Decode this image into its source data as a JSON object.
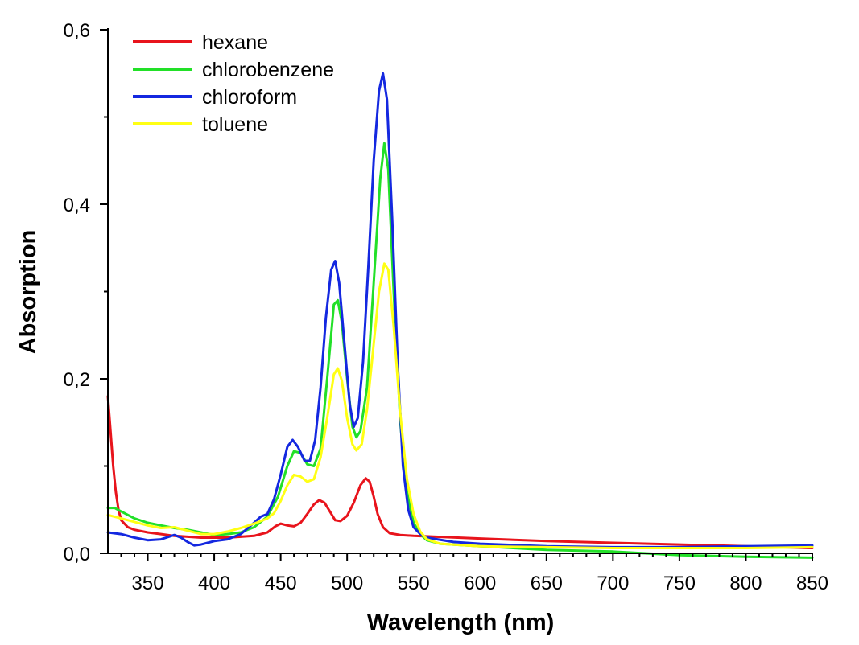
{
  "chart_data": {
    "type": "line",
    "title": "",
    "xlabel": "Wavelength (nm)",
    "ylabel": "Absorption",
    "xlim": [
      320,
      850
    ],
    "ylim": [
      0,
      0.6
    ],
    "x_ticks": [
      350,
      400,
      450,
      500,
      550,
      600,
      650,
      700,
      750,
      800,
      850
    ],
    "x_tick_labels": [
      "350",
      "400",
      "450",
      "500",
      "550",
      "600",
      "650",
      "700",
      "750",
      "800",
      "850"
    ],
    "y_ticks": [
      0,
      0.2,
      0.4,
      0.6
    ],
    "y_tick_labels": [
      "0,0",
      "0,2",
      "0,4",
      "0,6"
    ],
    "grid": false,
    "legend_position": "top-left",
    "series": [
      {
        "name": "hexane",
        "color": "#e8141c",
        "points": [
          [
            320,
            0.18
          ],
          [
            322,
            0.14
          ],
          [
            324,
            0.1
          ],
          [
            326,
            0.07
          ],
          [
            328,
            0.05
          ],
          [
            330,
            0.038
          ],
          [
            335,
            0.03
          ],
          [
            340,
            0.027
          ],
          [
            350,
            0.024
          ],
          [
            360,
            0.022
          ],
          [
            370,
            0.02
          ],
          [
            380,
            0.019
          ],
          [
            390,
            0.018
          ],
          [
            400,
            0.018
          ],
          [
            410,
            0.018
          ],
          [
            420,
            0.019
          ],
          [
            430,
            0.02
          ],
          [
            440,
            0.024
          ],
          [
            446,
            0.031
          ],
          [
            450,
            0.034
          ],
          [
            455,
            0.032
          ],
          [
            460,
            0.031
          ],
          [
            465,
            0.035
          ],
          [
            470,
            0.045
          ],
          [
            475,
            0.056
          ],
          [
            479,
            0.061
          ],
          [
            483,
            0.058
          ],
          [
            487,
            0.048
          ],
          [
            491,
            0.038
          ],
          [
            495,
            0.037
          ],
          [
            500,
            0.043
          ],
          [
            505,
            0.058
          ],
          [
            510,
            0.078
          ],
          [
            514,
            0.086
          ],
          [
            517,
            0.082
          ],
          [
            520,
            0.065
          ],
          [
            523,
            0.045
          ],
          [
            527,
            0.03
          ],
          [
            532,
            0.023
          ],
          [
            540,
            0.021
          ],
          [
            550,
            0.02
          ],
          [
            600,
            0.017
          ],
          [
            650,
            0.014
          ],
          [
            700,
            0.012
          ],
          [
            750,
            0.01
          ],
          [
            800,
            0.008
          ],
          [
            850,
            0.006
          ]
        ]
      },
      {
        "name": "chlorobenzene",
        "color": "#22e028",
        "points": [
          [
            320,
            0.052
          ],
          [
            325,
            0.052
          ],
          [
            330,
            0.048
          ],
          [
            340,
            0.04
          ],
          [
            350,
            0.035
          ],
          [
            360,
            0.032
          ],
          [
            370,
            0.029
          ],
          [
            380,
            0.027
          ],
          [
            390,
            0.024
          ],
          [
            400,
            0.021
          ],
          [
            410,
            0.022
          ],
          [
            420,
            0.024
          ],
          [
            430,
            0.03
          ],
          [
            440,
            0.042
          ],
          [
            448,
            0.065
          ],
          [
            455,
            0.1
          ],
          [
            460,
            0.117
          ],
          [
            465,
            0.115
          ],
          [
            470,
            0.102
          ],
          [
            475,
            0.1
          ],
          [
            480,
            0.12
          ],
          [
            485,
            0.2
          ],
          [
            490,
            0.285
          ],
          [
            493,
            0.29
          ],
          [
            496,
            0.265
          ],
          [
            500,
            0.2
          ],
          [
            504,
            0.145
          ],
          [
            507,
            0.133
          ],
          [
            510,
            0.14
          ],
          [
            515,
            0.19
          ],
          [
            520,
            0.31
          ],
          [
            525,
            0.43
          ],
          [
            528,
            0.47
          ],
          [
            531,
            0.44
          ],
          [
            535,
            0.3
          ],
          [
            540,
            0.15
          ],
          [
            545,
            0.07
          ],
          [
            550,
            0.035
          ],
          [
            555,
            0.022
          ],
          [
            560,
            0.015
          ],
          [
            570,
            0.011
          ],
          [
            600,
            0.008
          ],
          [
            650,
            0.004
          ],
          [
            700,
            0.002
          ],
          [
            750,
            -0.002
          ],
          [
            800,
            -0.004
          ],
          [
            850,
            -0.005
          ]
        ]
      },
      {
        "name": "chloroform",
        "color": "#1428e0",
        "points": [
          [
            320,
            0.024
          ],
          [
            330,
            0.022
          ],
          [
            340,
            0.018
          ],
          [
            350,
            0.015
          ],
          [
            360,
            0.016
          ],
          [
            370,
            0.021
          ],
          [
            375,
            0.018
          ],
          [
            380,
            0.013
          ],
          [
            385,
            0.009
          ],
          [
            390,
            0.01
          ],
          [
            400,
            0.014
          ],
          [
            410,
            0.016
          ],
          [
            420,
            0.022
          ],
          [
            430,
            0.035
          ],
          [
            435,
            0.042
          ],
          [
            440,
            0.045
          ],
          [
            445,
            0.062
          ],
          [
            450,
            0.09
          ],
          [
            455,
            0.122
          ],
          [
            459,
            0.13
          ],
          [
            463,
            0.122
          ],
          [
            468,
            0.106
          ],
          [
            472,
            0.106
          ],
          [
            476,
            0.13
          ],
          [
            480,
            0.19
          ],
          [
            484,
            0.27
          ],
          [
            488,
            0.325
          ],
          [
            491,
            0.335
          ],
          [
            494,
            0.31
          ],
          [
            498,
            0.24
          ],
          [
            502,
            0.17
          ],
          [
            505,
            0.145
          ],
          [
            508,
            0.155
          ],
          [
            512,
            0.22
          ],
          [
            516,
            0.33
          ],
          [
            520,
            0.45
          ],
          [
            524,
            0.53
          ],
          [
            527,
            0.55
          ],
          [
            530,
            0.52
          ],
          [
            534,
            0.38
          ],
          [
            538,
            0.22
          ],
          [
            542,
            0.1
          ],
          [
            546,
            0.05
          ],
          [
            550,
            0.03
          ],
          [
            555,
            0.022
          ],
          [
            560,
            0.018
          ],
          [
            580,
            0.013
          ],
          [
            600,
            0.011
          ],
          [
            650,
            0.008
          ],
          [
            700,
            0.007
          ],
          [
            750,
            0.007
          ],
          [
            800,
            0.008
          ],
          [
            850,
            0.009
          ]
        ]
      },
      {
        "name": "toluene",
        "color": "#ffff14",
        "points": [
          [
            320,
            0.044
          ],
          [
            330,
            0.04
          ],
          [
            340,
            0.036
          ],
          [
            350,
            0.032
          ],
          [
            360,
            0.029
          ],
          [
            370,
            0.03
          ],
          [
            380,
            0.026
          ],
          [
            390,
            0.022
          ],
          [
            400,
            0.022
          ],
          [
            410,
            0.025
          ],
          [
            420,
            0.029
          ],
          [
            430,
            0.034
          ],
          [
            440,
            0.04
          ],
          [
            445,
            0.046
          ],
          [
            450,
            0.06
          ],
          [
            455,
            0.078
          ],
          [
            460,
            0.09
          ],
          [
            465,
            0.088
          ],
          [
            470,
            0.082
          ],
          [
            475,
            0.085
          ],
          [
            480,
            0.11
          ],
          [
            485,
            0.155
          ],
          [
            490,
            0.205
          ],
          [
            493,
            0.212
          ],
          [
            496,
            0.198
          ],
          [
            500,
            0.155
          ],
          [
            504,
            0.125
          ],
          [
            507,
            0.118
          ],
          [
            511,
            0.125
          ],
          [
            515,
            0.165
          ],
          [
            520,
            0.24
          ],
          [
            524,
            0.3
          ],
          [
            528,
            0.332
          ],
          [
            531,
            0.325
          ],
          [
            535,
            0.26
          ],
          [
            540,
            0.16
          ],
          [
            545,
            0.085
          ],
          [
            550,
            0.045
          ],
          [
            555,
            0.025
          ],
          [
            560,
            0.016
          ],
          [
            570,
            0.011
          ],
          [
            600,
            0.008
          ],
          [
            650,
            0.007
          ],
          [
            700,
            0.006
          ],
          [
            750,
            0.006
          ],
          [
            800,
            0.006
          ],
          [
            850,
            0.007
          ]
        ]
      }
    ]
  }
}
